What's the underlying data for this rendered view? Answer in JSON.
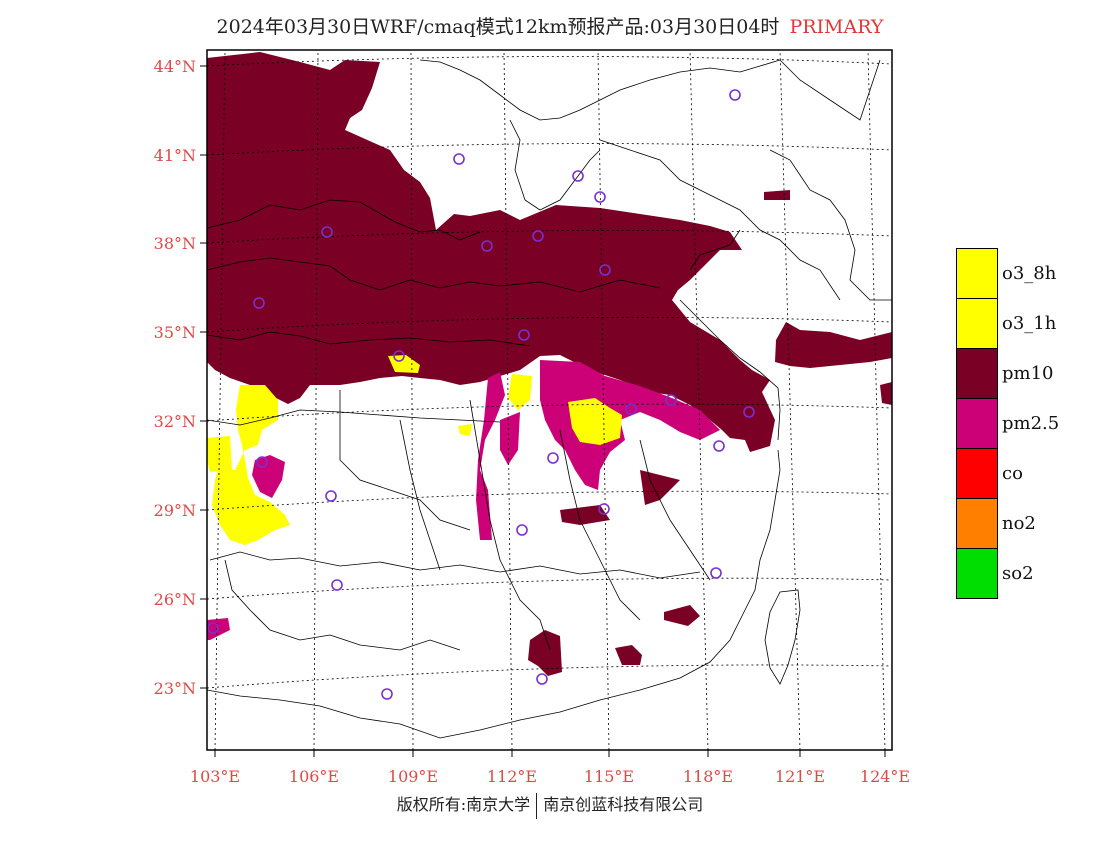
{
  "title": {
    "main": "2024年03月30日WRF/cmaq模式12km预报产品:03月30日04时",
    "tag": "PRIMARY",
    "tag_color": "#e03838"
  },
  "map": {
    "lat_ticks": [
      "44°N",
      "41°N",
      "38°N",
      "35°N",
      "32°N",
      "29°N",
      "26°N",
      "23°N"
    ],
    "lon_ticks": [
      "103°E",
      "106°E",
      "109°E",
      "112°E",
      "115°E",
      "118°E",
      "121°E",
      "124°E"
    ],
    "station_marker_color": "#7b2fd0",
    "boundary_color": "#000000"
  },
  "legend": {
    "items": [
      {
        "label": "o3_8h",
        "color": "#ffff00"
      },
      {
        "label": "o3_1h",
        "color": "#ffff00"
      },
      {
        "label": "pm10",
        "color": "#7a0026"
      },
      {
        "label": "pm2.5",
        "color": "#cc0077"
      },
      {
        "label": "co",
        "color": "#ff0000"
      },
      {
        "label": "no2",
        "color": "#ff7f00"
      },
      {
        "label": "so2",
        "color": "#00dd00"
      }
    ]
  },
  "footer": {
    "left": "版权所有:南京大学",
    "right": "南京创蓝科技有限公司"
  }
}
